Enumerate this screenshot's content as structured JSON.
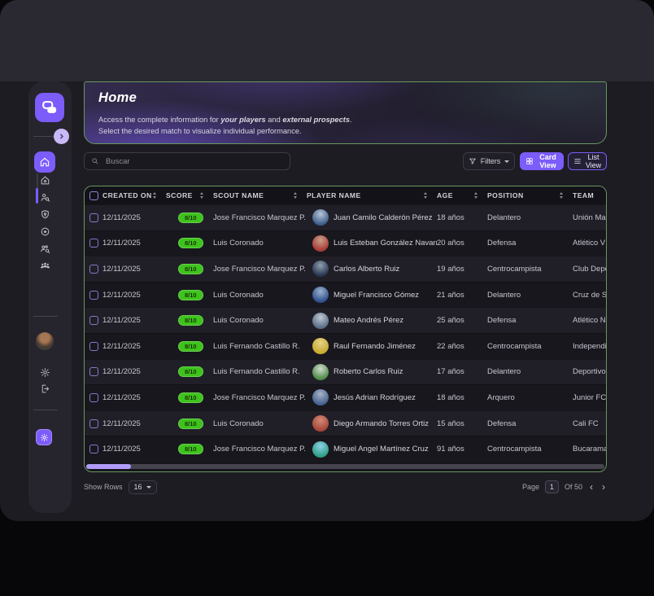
{
  "colors": {
    "accent_purple": "#7c5cfa",
    "accent_purple_light": "#c9b9f7",
    "green_border": "#67985c",
    "score_pill_green": "#3ec31d",
    "scrollbar_thumb": "#b19bf7"
  },
  "sidebar": {
    "logo_icon": "brand-logo",
    "expand_icon": "chevron-right",
    "nav": [
      {
        "name": "home",
        "icon": "home",
        "active": true
      },
      {
        "name": "club",
        "icon": "house"
      },
      {
        "name": "scouts",
        "icon": "scout-search",
        "indicator": true
      },
      {
        "name": "locations",
        "icon": "shield-pin"
      },
      {
        "name": "badges",
        "icon": "badge-star"
      },
      {
        "name": "prospect-search",
        "icon": "people-search"
      },
      {
        "name": "teams",
        "icon": "team"
      }
    ],
    "bottom_icons": [
      "user-avatar",
      "gear",
      "logout",
      "theme-settings"
    ]
  },
  "hero": {
    "title": "Home",
    "desc": {
      "l1a": "Access the complete information for ",
      "l1b": "your players",
      "l1c": " and ",
      "l1d": "external prospects",
      "l1e": ".",
      "l2": "Select the desired match to visualize individual performance."
    }
  },
  "toolbar": {
    "search_placeholder": "Buscar",
    "search_icon": "search-icon",
    "filters_label": "Filters",
    "filters_icon": "filter-icon",
    "card_view_label": "Card View",
    "card_view_icon": "grid-icon",
    "list_view_label": "List View",
    "list_view_icon": "list-icon"
  },
  "table": {
    "columns": [
      {
        "key": "created",
        "label": "CREATED ON",
        "sortable": true
      },
      {
        "key": "score",
        "label": "SCORE",
        "sortable": true
      },
      {
        "key": "scout",
        "label": "SCOUT NAME",
        "sortable": true
      },
      {
        "key": "player",
        "label": "PLAYER NAME",
        "sortable": true
      },
      {
        "key": "age",
        "label": "AGE",
        "sortable": true
      },
      {
        "key": "position",
        "label": "POSITION",
        "sortable": true
      },
      {
        "key": "team",
        "label": "TEAM",
        "sortable": false
      }
    ],
    "rows": [
      {
        "created": "12/11/2025",
        "score": "8/10",
        "scout": "Jose Francisco Marquez P.",
        "player": "Juan Camilo Calderón Pérez",
        "age": "18 años",
        "position": "Delantero",
        "team": "Unión Magd",
        "avatar_colors": [
          "#3f5d8c",
          "#b8c6d8"
        ]
      },
      {
        "created": "12/11/2025",
        "score": "8/10",
        "scout": "Luis Coronado",
        "player": "Luis Esteban González Navarro",
        "age": "20 años",
        "position": "Defensa",
        "team": "Atlético V",
        "avatar_colors": [
          "#a83c35",
          "#c9a08a"
        ]
      },
      {
        "created": "12/11/2025",
        "score": "8/10",
        "scout": "Jose Francisco Marquez P.",
        "player": "Carlos Alberto Ruiz",
        "age": "19 años",
        "position": "Centrocampista",
        "team": "Club Depor",
        "avatar_colors": [
          "#27354f",
          "#8fa0b0"
        ]
      },
      {
        "created": "12/11/2025",
        "score": "8/10",
        "scout": "Luis Coronado",
        "player": "Miguel Francisco Gómez",
        "age": "21 años",
        "position": "Delantero",
        "team": "Cruz de Si",
        "avatar_colors": [
          "#2f4f8e",
          "#9fb2cc"
        ]
      },
      {
        "created": "12/11/2025",
        "score": "8/10",
        "scout": "Luis Coronado",
        "player": "Mateo Andrés Pérez",
        "age": "25 años",
        "position": "Defensa",
        "team": "Atlético N",
        "avatar_colors": [
          "#5a6e85",
          "#c0c9d2"
        ]
      },
      {
        "created": "12/11/2025",
        "score": "8/10",
        "scout": "Luis Fernando Castillo R.",
        "player": "Raul Fernando Jiménez",
        "age": "22 años",
        "position": "Centrocampista",
        "team": "Independie",
        "avatar_colors": [
          "#c9aa2e",
          "#e4d28a"
        ]
      },
      {
        "created": "12/11/2025",
        "score": "8/10",
        "scout": "Luis Fernando Castillo R.",
        "player": "Roberto Carlos Ruiz",
        "age": "17 años",
        "position": "Delantero",
        "team": "Deportivo",
        "avatar_colors": [
          "#4e8c46",
          "#d2dcd2"
        ]
      },
      {
        "created": "12/11/2025",
        "score": "8/10",
        "scout": "Jose Francisco Marquez P.",
        "player": "Jesús Adrian Rodríguez",
        "age": "18 años",
        "position": "Arquero",
        "team": "Junior FC",
        "avatar_colors": [
          "#46618f",
          "#a8b4c4"
        ]
      },
      {
        "created": "12/11/2025",
        "score": "8/10",
        "scout": "Luis Coronado",
        "player": "Diego Armando Torres Ortiz",
        "age": "15 años",
        "position": "Defensa",
        "team": "Cali FC",
        "avatar_colors": [
          "#a8473a",
          "#d28a76"
        ]
      },
      {
        "created": "12/11/2025",
        "score": "8/10",
        "scout": "Jose Francisco Marquez P.",
        "player": "Miguel Angel Martínez Cruz",
        "age": "91 años",
        "position": "Centrocampista",
        "team": "Bucaramang",
        "avatar_colors": [
          "#2e9e85",
          "#8fd2e8"
        ]
      }
    ]
  },
  "footer": {
    "show_rows_label": "Show Rows",
    "rows_per_page": "16",
    "page_label": "Page",
    "page_value": "1",
    "of_label": "Of 50",
    "prev_icon": "‹",
    "next_icon": "›"
  }
}
